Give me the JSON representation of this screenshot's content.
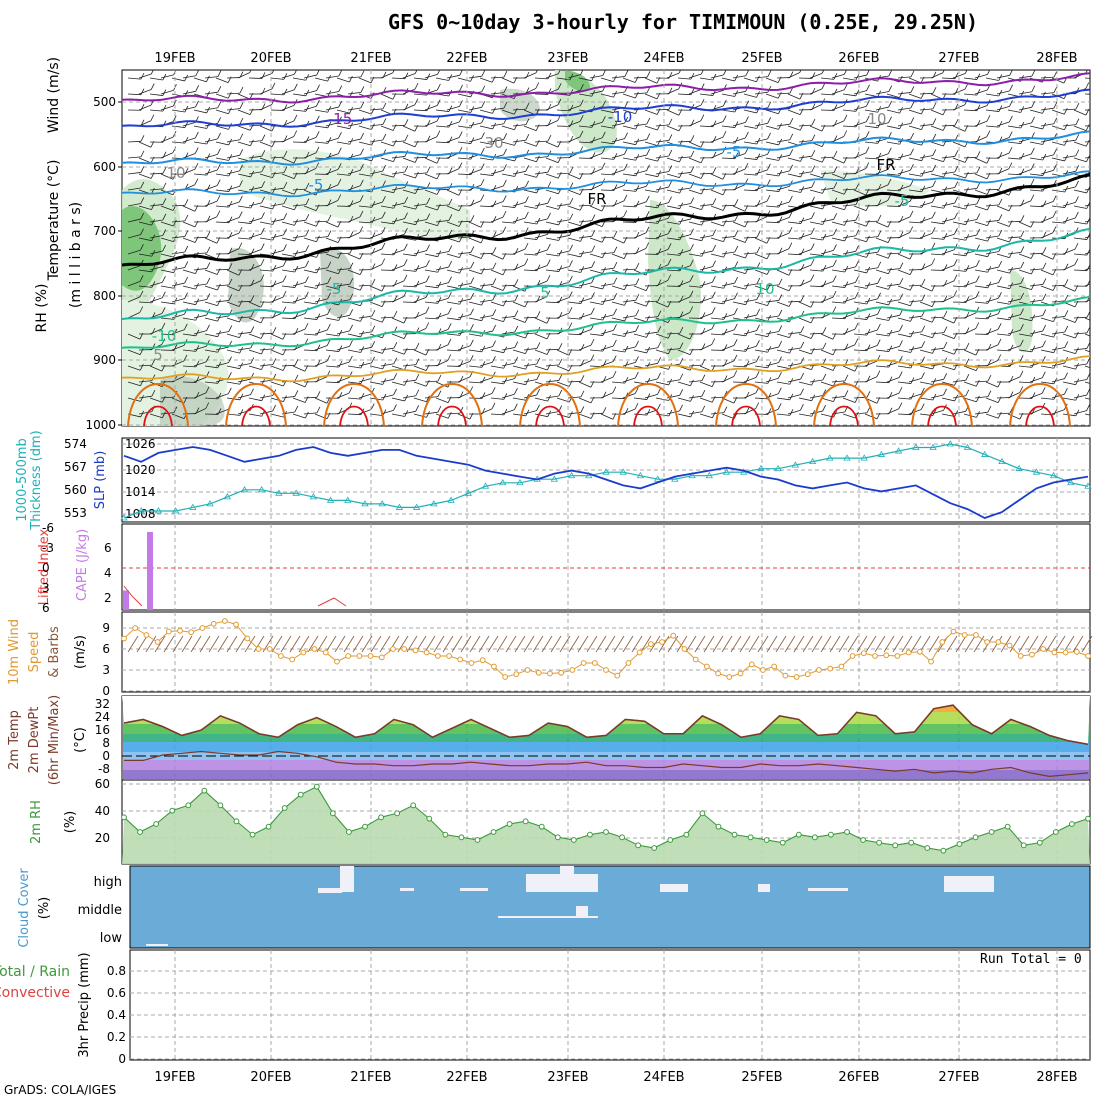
{
  "title": "GFS 0~10day 3-hourly for TIMIMOUN (0.25E, 29.25N)",
  "footer": "GrADS: COLA/IGES",
  "run_total": "Run Total = 0",
  "dates": [
    "19FEB",
    "20FEB",
    "21FEB",
    "22FEB",
    "23FEB",
    "24FEB",
    "25FEB",
    "26FEB",
    "27FEB",
    "28FEB"
  ],
  "colors": {
    "grid": "#a8a8a8",
    "rh_fill": "#9fd59a",
    "temp_15": "#8b1fa8",
    "temp_10": "#1f3fd0",
    "temp_5": "#1f8fe0",
    "temp_fr": "#000000",
    "temp_p5": "#19b8a8",
    "temp_p10": "#1fbf8f",
    "temp_p15": "#e0a020",
    "temp_p20": "#e07010",
    "temp_p25": "#e01010",
    "slp": "#1a3ccc",
    "thickness": "#20b0b8",
    "cape": "#c47ae8",
    "lifted": "#e04040",
    "wind10": "#e09a30",
    "rh2m": "#3c9a3c",
    "cloud_bg": "#6aabd8",
    "cloud_fill": "#f0f0f8"
  },
  "panels": {
    "upper": {
      "labels": [
        "Wind (m/s)",
        "Temperature (°C)",
        "RH (%)",
        "(m i l l i b a r s)"
      ],
      "yticks": [
        "500",
        "600",
        "700",
        "800",
        "900",
        "1000"
      ],
      "contour_labels": [
        "-15",
        "-10",
        "-5",
        "-5",
        "FR",
        "FR",
        "-5",
        "-5",
        "5",
        "10",
        "-10",
        "30",
        "10",
        "10",
        "5"
      ]
    },
    "slp": {
      "labels": [
        "1000-500mb",
        "Thickness (dm)",
        "SLP (mb)"
      ],
      "left_ticks": [
        "574",
        "567",
        "560",
        "553"
      ],
      "right_ticks": [
        "1026",
        "1020",
        "1014",
        "1008"
      ]
    },
    "cape": {
      "labels": [
        "Lifted Index",
        "CAPE (J/kg)"
      ],
      "left_ticks": [
        "-6",
        "-3",
        "0",
        "3",
        "6"
      ],
      "right_ticks": [
        "6",
        "4",
        "2"
      ]
    },
    "wind10": {
      "labels": [
        "10m Wind",
        "Speed",
        "& Barbs",
        "(m/s)"
      ],
      "ticks": [
        "9",
        "6",
        "3",
        "0"
      ]
    },
    "temp2m": {
      "labels": [
        "2m Temp",
        "2m DewPt",
        "(6hr Min/Max)",
        "(°C)"
      ],
      "ticks": [
        "32",
        "24",
        "16",
        "8",
        "0",
        "-8"
      ]
    },
    "rh2m": {
      "labels": [
        "2m RH",
        "(%)"
      ],
      "ticks": [
        "60",
        "40",
        "20"
      ]
    },
    "cloud": {
      "labels": [
        "Cloud Cover",
        "(%)"
      ],
      "ticks": [
        "high",
        "middle",
        "low"
      ]
    },
    "precip": {
      "labels": [
        "Total / Rain",
        "Convective",
        "3hr Precip (mm)"
      ],
      "ticks": [
        "0.8",
        "0.6",
        "0.4",
        "0.2",
        "0"
      ]
    }
  },
  "chart_data": {
    "type": "line",
    "x_labels": [
      "19FEB",
      "20FEB",
      "21FEB",
      "22FEB",
      "23FEB",
      "24FEB",
      "25FEB",
      "26FEB",
      "27FEB",
      "28FEB"
    ],
    "slp_mb": [
      1024,
      1022,
      1025,
      1026,
      1027,
      1026,
      1024,
      1022,
      1023,
      1024,
      1026,
      1027,
      1025,
      1024,
      1025,
      1026,
      1026,
      1024,
      1023,
      1022,
      1021,
      1019,
      1018,
      1017,
      1016,
      1018,
      1019,
      1018,
      1016,
      1014,
      1013,
      1015,
      1017,
      1018,
      1019,
      1020,
      1019,
      1017,
      1016,
      1014,
      1013,
      1014,
      1015,
      1013,
      1012,
      1013,
      1014,
      1011,
      1008,
      1006,
      1003,
      1005,
      1009,
      1013,
      1015,
      1016,
      1017
    ],
    "thickness_dm": [
      553,
      555,
      555,
      555,
      556,
      557,
      559,
      561,
      561,
      560,
      560,
      559,
      558,
      558,
      557,
      557,
      556,
      556,
      557,
      558,
      560,
      562,
      563,
      563,
      564,
      564,
      565,
      565,
      566,
      566,
      565,
      564,
      564,
      565,
      565,
      566,
      566,
      567,
      567,
      568,
      569,
      570,
      570,
      570,
      571,
      572,
      573,
      573,
      574,
      573,
      571,
      569,
      567,
      566,
      565,
      563,
      562
    ],
    "cape_jkg": [
      2,
      0,
      8,
      0,
      0,
      0,
      0,
      0,
      0,
      0,
      0,
      0,
      0,
      0,
      0,
      0,
      0,
      0,
      0,
      0,
      0,
      0,
      0,
      0,
      0,
      0,
      0,
      0,
      0,
      0,
      0,
      0,
      0,
      0,
      0,
      0,
      0,
      0,
      0,
      0,
      0,
      0,
      0,
      0,
      0,
      0,
      0,
      0,
      0,
      0,
      0,
      0,
      0,
      0,
      0,
      0,
      0
    ],
    "wind10_ms": [
      7.5,
      9,
      8,
      7,
      8.5,
      8.6,
      8.4,
      9,
      9.6,
      10,
      9.5,
      7.5,
      6,
      6,
      5,
      4.5,
      5.5,
      6,
      5.5,
      4.2,
      5,
      5,
      5,
      4.8,
      6,
      6,
      5.8,
      5.5,
      5,
      5,
      4.5,
      4,
      4.4,
      3.5,
      2,
      2.4,
      3,
      2.6,
      2.5,
      2.6,
      3,
      4,
      4,
      3,
      2.2,
      4,
      5.5,
      6.7,
      7,
      7.9,
      6,
      4.5,
      3.5,
      2.5,
      2,
      2.5,
      3.8,
      3,
      3.5,
      2.2,
      2,
      2.4,
      3,
      3.2,
      3.5,
      5,
      5.4,
      5,
      5.1,
      5,
      5.5,
      5.6,
      4.2,
      7,
      8.5,
      8,
      8,
      7,
      7,
      6.5,
      5,
      5.2,
      6,
      5.5,
      5.5,
      5.6,
      5
    ],
    "temp2m_c": [
      20,
      22,
      18,
      13,
      16,
      24,
      20,
      14,
      12,
      19,
      23,
      18,
      12,
      14,
      22,
      19,
      12,
      17,
      22,
      17,
      12,
      13,
      20,
      18,
      12,
      13,
      22,
      21,
      14,
      14,
      24,
      19,
      12,
      14,
      24,
      22,
      13,
      14,
      26,
      24,
      14,
      15,
      28,
      30,
      19,
      14,
      22,
      18,
      13,
      10,
      8
    ],
    "dewpt2m_c": [
      -1,
      -1,
      2,
      3,
      4,
      3,
      2,
      2,
      4,
      3,
      1,
      -2,
      -3,
      -3,
      -4,
      -4,
      -3,
      -3,
      -2,
      -3,
      -4,
      -4,
      -3,
      -3,
      -2,
      -4,
      -4,
      -5,
      -5,
      -3,
      -4,
      -5,
      -5,
      -3,
      -4,
      -4,
      -3,
      -4,
      -5,
      -6,
      -7,
      -6,
      -8,
      -7,
      -8,
      -6,
      -5,
      -8,
      -10,
      -9,
      -8
    ],
    "rh2m_pct": [
      35,
      24,
      30,
      40,
      44,
      55,
      44,
      32,
      22,
      28,
      42,
      52,
      58,
      38,
      24,
      28,
      35,
      38,
      44,
      34,
      22,
      20,
      18,
      24,
      30,
      32,
      28,
      20,
      18,
      22,
      24,
      20,
      14,
      12,
      18,
      22,
      38,
      28,
      22,
      20,
      18,
      16,
      22,
      20,
      22,
      24,
      18,
      16,
      14,
      16,
      12,
      10,
      15,
      20,
      24,
      28,
      14,
      16,
      24,
      30,
      34
    ],
    "precip_mm": [
      0,
      0,
      0,
      0,
      0,
      0,
      0,
      0,
      0,
      0
    ],
    "precip_ylim": [
      0,
      0.9
    ]
  }
}
